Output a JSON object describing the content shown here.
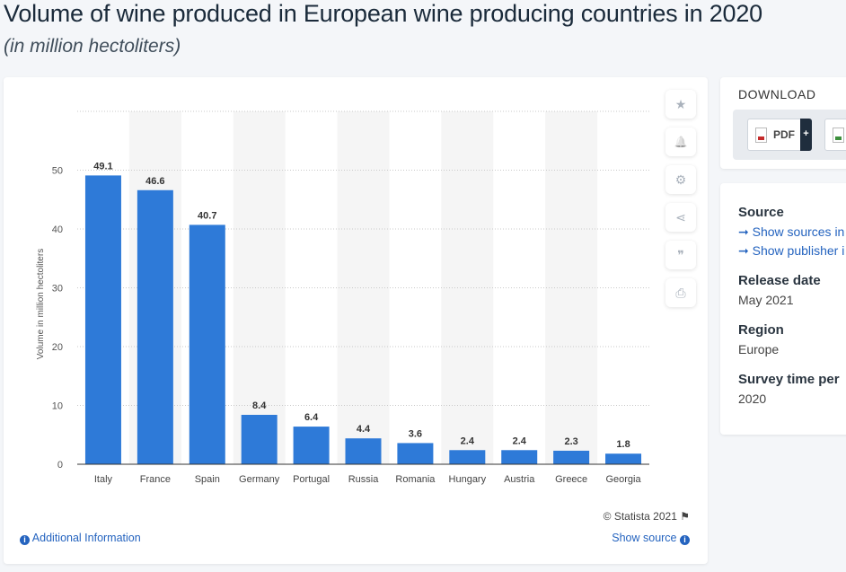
{
  "header": {
    "title": "Volume of wine produced in European wine producing countries in 2020",
    "subtitle": "(in million hectoliters)"
  },
  "chart_data": {
    "type": "bar",
    "title": "Volume of wine produced in European wine producing countries in 2020",
    "subtitle": "(in million hectoliters)",
    "xlabel": "",
    "ylabel": "Volume in million hectoliters",
    "categories": [
      "Italy",
      "France",
      "Spain",
      "Germany",
      "Portugal",
      "Russia",
      "Romania",
      "Hungary",
      "Austria",
      "Greece",
      "Georgia"
    ],
    "values": [
      49.1,
      46.6,
      40.7,
      8.4,
      6.4,
      4.4,
      3.6,
      2.4,
      2.4,
      2.3,
      1.8
    ],
    "data_labels": [
      "49.1",
      "46.6",
      "40.7",
      "8.4",
      "6.4",
      "4.4",
      "3.6",
      "2.4",
      "2.4",
      "2.3",
      "1.8"
    ],
    "yticks": [
      0,
      10,
      20,
      30,
      40,
      50
    ],
    "ytick_labels": [
      "0",
      "10",
      "20",
      "30",
      "40",
      "50"
    ],
    "ylim": [
      0,
      60
    ],
    "grid": true,
    "bar_color": "#2e7ad8",
    "band_color": "#f5f5f5"
  },
  "footer": {
    "copyright": "© Statista 2021",
    "additional_info": "Additional Information",
    "show_source": "Show source"
  },
  "tools": [
    {
      "icon": "star-icon",
      "glyph": "★"
    },
    {
      "icon": "bell-icon",
      "glyph": "🔔"
    },
    {
      "icon": "gear-icon",
      "glyph": "⚙"
    },
    {
      "icon": "share-icon",
      "glyph": "⋖"
    },
    {
      "icon": "quote-icon",
      "glyph": "❞"
    },
    {
      "icon": "print-icon",
      "glyph": "⎙"
    }
  ],
  "download": {
    "title": "DOWNLOAD",
    "pdf_label": "PDF",
    "plus": "+"
  },
  "details": {
    "source_heading": "Source",
    "source_link1": "➞ Show sources in",
    "source_link2": "➞ Show publisher i",
    "release_heading": "Release date",
    "release_value": "May 2021",
    "region_heading": "Region",
    "region_value": "Europe",
    "survey_heading": "Survey time per",
    "survey_value": "2020"
  },
  "colors": {
    "accent": "#2463bf",
    "bar": "#2e7ad8"
  }
}
